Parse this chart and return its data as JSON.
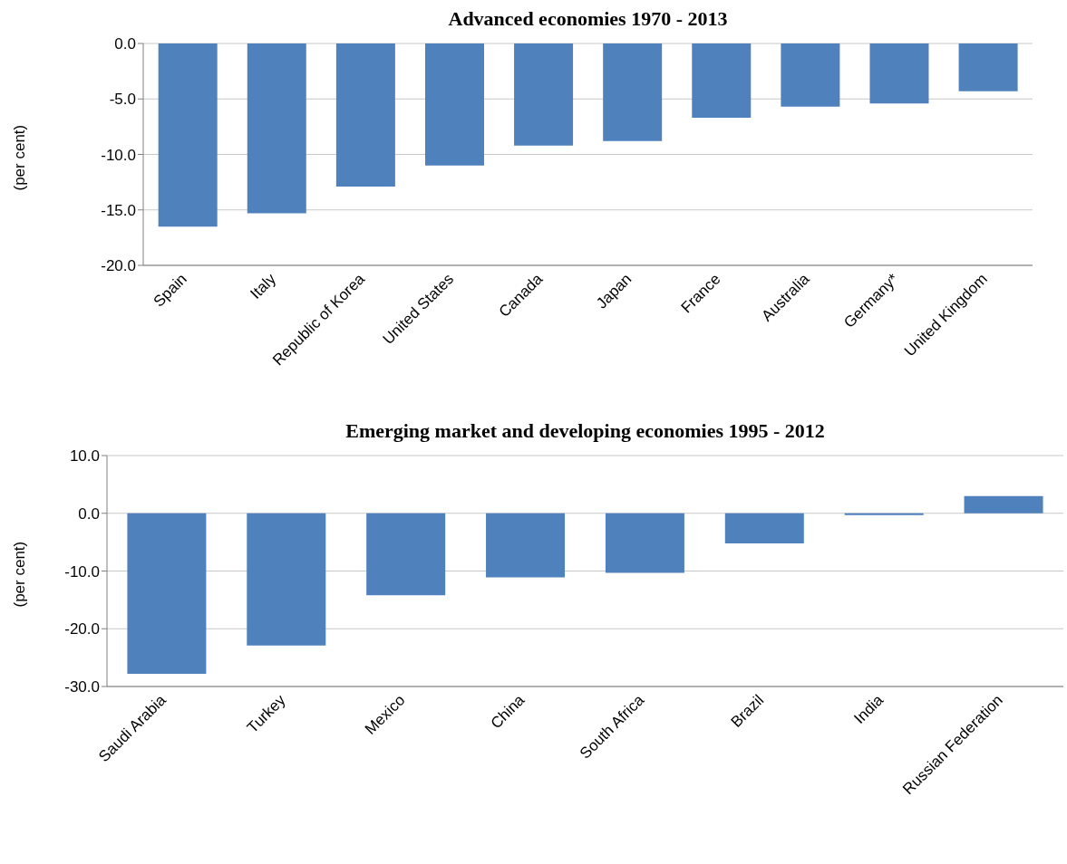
{
  "chart_data": [
    {
      "type": "bar",
      "title": "Advanced economies  1970 - 2013",
      "ylabel": "(per cent)",
      "categories": [
        "Spain",
        "Italy",
        "Republic of Korea",
        "United States",
        "Canada",
        "Japan",
        "France",
        "Australia",
        "Germany*",
        "United Kingdom"
      ],
      "values": [
        -16.5,
        -15.3,
        -12.9,
        -11.0,
        -9.2,
        -8.8,
        -6.7,
        -5.7,
        -5.4,
        -4.3
      ],
      "color": "#4f81bd",
      "ylim": [
        -20,
        0
      ],
      "yticks": [
        {
          "value": -20,
          "label": "-20.0"
        },
        {
          "value": -15,
          "label": "-15.0"
        },
        {
          "value": -10,
          "label": "-10.0"
        },
        {
          "value": -5,
          "label": "-5.0"
        },
        {
          "value": 0,
          "label": "0.0"
        }
      ],
      "grid": "y"
    },
    {
      "type": "bar",
      "title": "Emerging market and developing economies 1995 - 2012",
      "ylabel": "(per cent)",
      "categories": [
        "Saudi Arabia",
        "Turkey",
        "Mexico",
        "China",
        "South Africa",
        "Brazil",
        "India",
        "Russian Federation"
      ],
      "values": [
        -27.8,
        -22.9,
        -14.2,
        -11.1,
        -10.3,
        -5.2,
        -0.3,
        3.0
      ],
      "color": "#4f81bd",
      "ylim": [
        -30,
        10
      ],
      "yticks": [
        {
          "value": -30,
          "label": "-30.0"
        },
        {
          "value": -20,
          "label": "-20.0"
        },
        {
          "value": -10,
          "label": "-10.0"
        },
        {
          "value": 0,
          "label": "0.0"
        },
        {
          "value": 10,
          "label": "10.0"
        }
      ],
      "grid": "y"
    }
  ]
}
